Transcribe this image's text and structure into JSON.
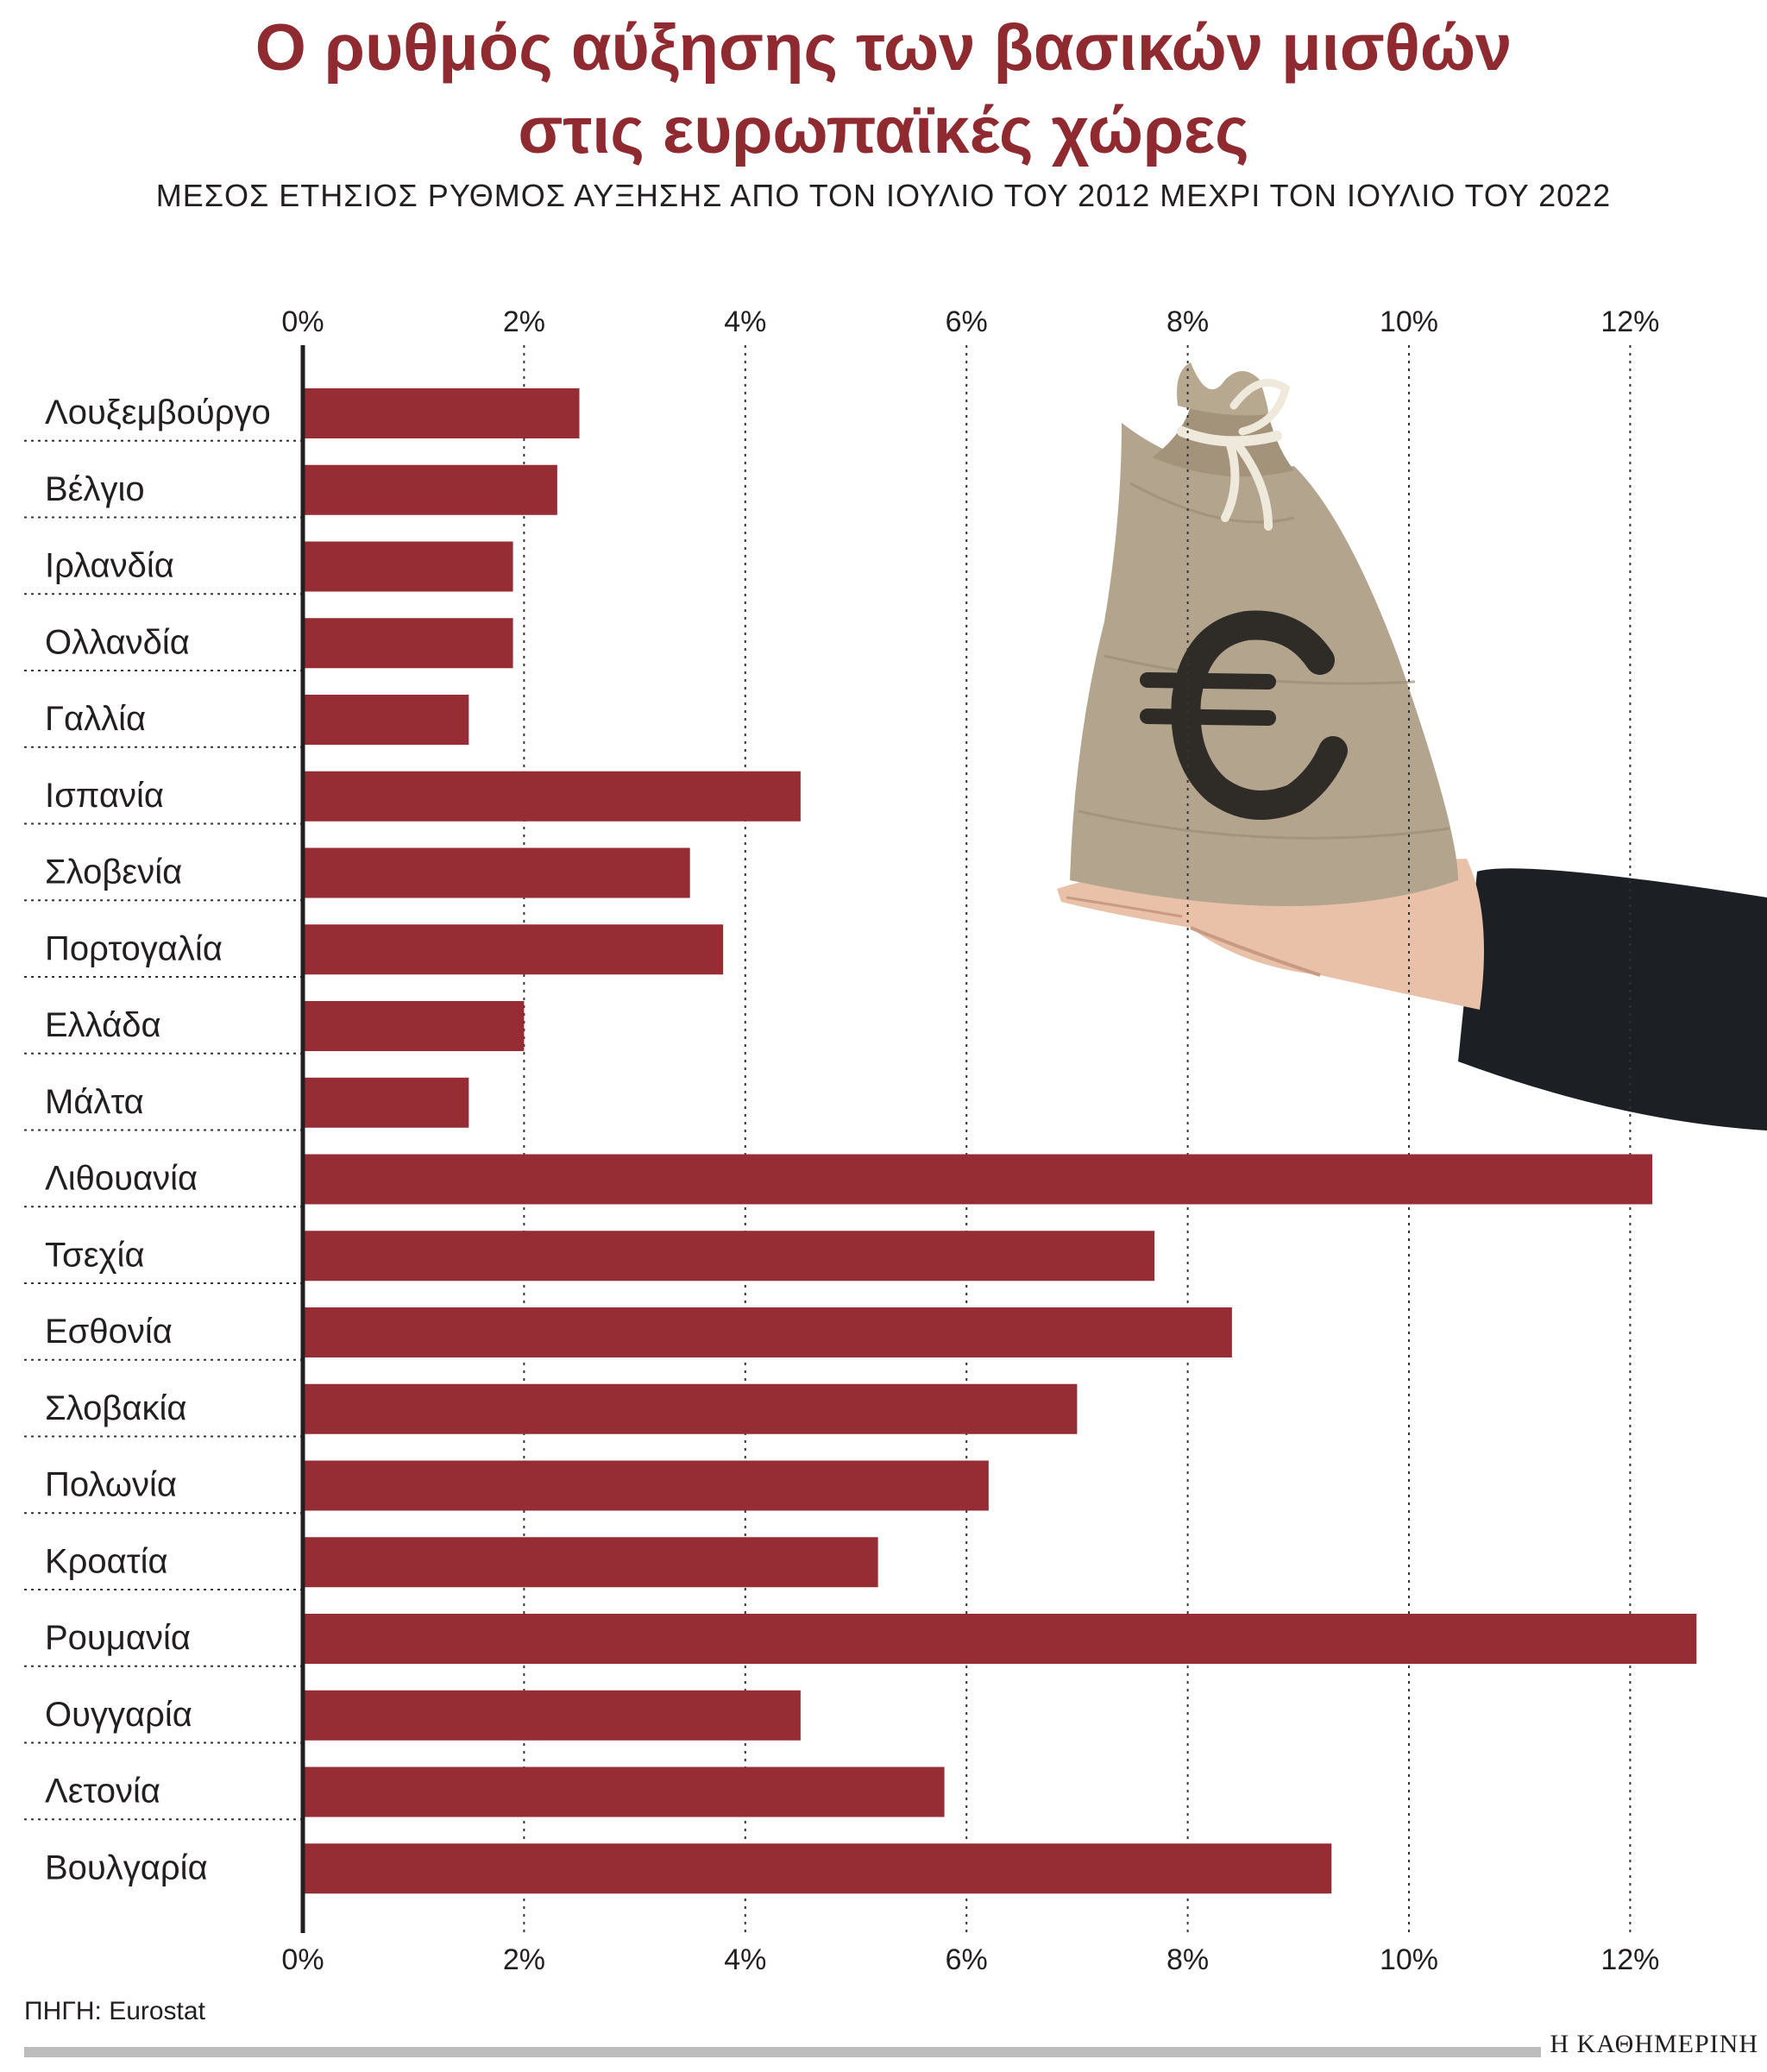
{
  "header": {
    "title_line1": "Ο ρυθμός αύξησης των βασικών μισθών",
    "title_line2": "στις ευρωπαϊκές χώρες",
    "subtitle": "ΜΕΣΟΣ ΕΤΗΣΙΟΣ ΡΥΘΜΟΣ ΑΥΞΗΣΗΣ ΑΠΟ ΤΟΝ ΙΟΥΛΙΟ ΤΟΥ 2012 ΜΕΧΡΙ ΤΟΝ ΙΟΥΛΙΟ ΤΟΥ 2022"
  },
  "footer": {
    "source": "ΠΗΓΗ: Eurostat",
    "brand": "Η ΚΑΘΗΜΕΡΙΝΗ"
  },
  "colors": {
    "bar": "#962d34",
    "title": "#8e2a30"
  },
  "illustration": "hand-holding-euro-money-bag",
  "chart_data": {
    "type": "bar",
    "orientation": "horizontal",
    "title": "Ο ρυθμός αύξησης των βασικών μισθών στις ευρωπαϊκές χώρες",
    "subtitle": "ΜΕΣΟΣ ΕΤΗΣΙΟΣ ΡΥΘΜΟΣ ΑΥΞΗΣΗΣ ΑΠΟ ΤΟΝ ΙΟΥΛΙΟ ΤΟΥ 2012 ΜΕΧΡΙ ΤΟΝ ΙΟΥΛΙΟ ΤΟΥ 2022",
    "xlabel": "",
    "ylabel": "",
    "xlim": [
      0,
      12.6
    ],
    "x_ticks": [
      0,
      2,
      4,
      6,
      8,
      10,
      12
    ],
    "x_tick_labels": [
      "0%",
      "2%",
      "4%",
      "6%",
      "8%",
      "10%",
      "12%"
    ],
    "tick_labels_top_and_bottom": true,
    "grid": "vertical dotted",
    "categories": [
      "Λουξεμβούργο",
      "Βέλγιο",
      "Ιρλανδία",
      "Ολλανδία",
      "Γαλλία",
      "Ισπανία",
      "Σλοβενία",
      "Πορτογαλία",
      "Ελλάδα",
      "Μάλτα",
      "Λιθουανία",
      "Τσεχία",
      "Εσθονία",
      "Σλοβακία",
      "Πολωνία",
      "Κροατία",
      "Ρουμανία",
      "Ουγγαρία",
      "Λετονία",
      "Βουλγαρία"
    ],
    "values": [
      2.5,
      2.3,
      1.9,
      1.9,
      1.5,
      4.5,
      3.5,
      3.8,
      2.0,
      1.5,
      12.2,
      7.7,
      8.4,
      7.0,
      6.2,
      5.2,
      12.6,
      4.5,
      5.8,
      9.3
    ]
  }
}
